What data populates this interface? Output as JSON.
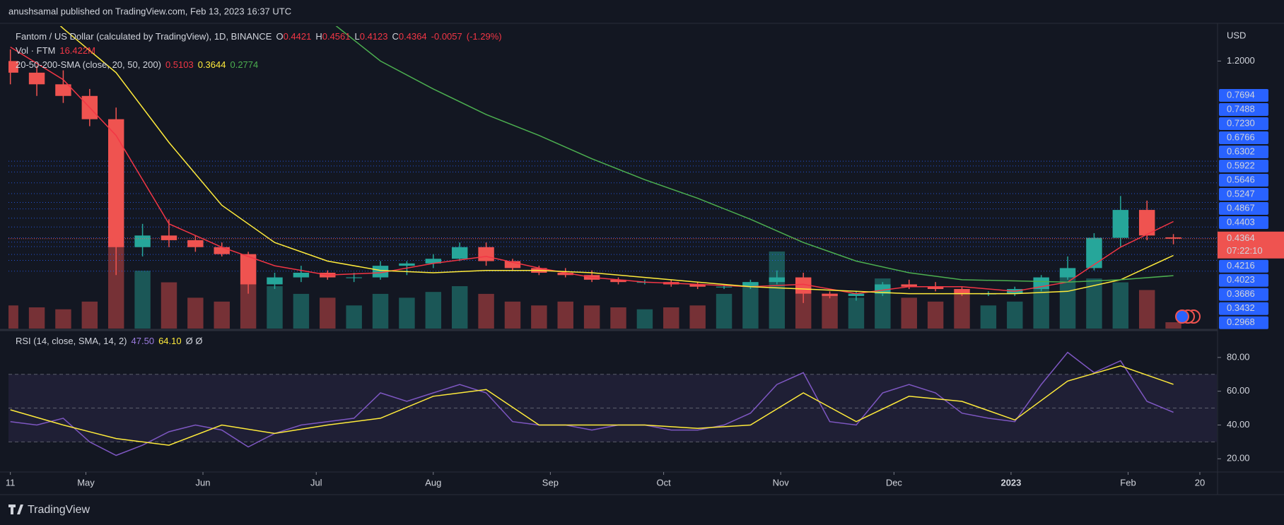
{
  "header": {
    "text": "anushsamal published on TradingView.com, Feb 13, 2023 16:37 UTC"
  },
  "footer": {
    "brand": "TradingView"
  },
  "chart_data": {
    "type": "candlestick",
    "title": "Fantom / US Dollar (calculated by TradingView), 1D, BINANCE",
    "ohlc_labels": [
      "O",
      "H",
      "L",
      "C"
    ],
    "change": -0.0057,
    "change_pct": {
      "value": -1.29,
      "label": "(-1.29%)"
    },
    "currency": "USD",
    "countdown": "07:22:10",
    "up_color": "#26a69a",
    "down_color": "#ef5350",
    "xlim": [
      -0.5,
      319.5
    ],
    "xticks": [
      {
        "value": 0,
        "label": "11"
      },
      {
        "value": 20,
        "label": "May"
      },
      {
        "value": 51,
        "label": "Jun"
      },
      {
        "value": 81,
        "label": "Jul"
      },
      {
        "value": 112,
        "label": "Aug"
      },
      {
        "value": 143,
        "label": "Sep"
      },
      {
        "value": 173,
        "label": "Oct"
      },
      {
        "value": 204,
        "label": "Nov"
      },
      {
        "value": 234,
        "label": "Dec"
      },
      {
        "value": 265,
        "label": "2023"
      },
      {
        "value": 296,
        "label": "Feb"
      },
      {
        "value": 315,
        "label": "20"
      }
    ],
    "ylim": [
      0.05,
      1.35
    ],
    "yticks": [
      {
        "value": 1.2,
        "label": "1.2000"
      }
    ],
    "price_levels": [
      0.7694,
      0.7488,
      {
        "value": 0.723,
        "label": "0.7230"
      },
      0.6766,
      0.6302,
      0.5922,
      0.5646,
      0.5247,
      0.4867,
      0.4403,
      0.4216,
      0.4023,
      0.3686,
      0.3432,
      0.2968
    ],
    "level_color": "#2962ff",
    "x": [
      0,
      7,
      14,
      21,
      28,
      35,
      42,
      49,
      56,
      63,
      70,
      77,
      84,
      91,
      98,
      105,
      112,
      119,
      126,
      133,
      140,
      147,
      154,
      161,
      168,
      175,
      182,
      189,
      196,
      203,
      210,
      217,
      224,
      231,
      238,
      245,
      252,
      259,
      266,
      273,
      280,
      287,
      294,
      301,
      308
    ],
    "open": [
      1.2,
      1.15,
      1.1,
      1.05,
      0.95,
      0.4,
      0.45,
      0.43,
      0.4,
      0.37,
      0.24,
      0.27,
      0.29,
      0.27,
      0.27,
      0.32,
      0.33,
      0.35,
      0.4,
      0.34,
      0.31,
      0.29,
      0.28,
      0.26,
      0.25,
      0.25,
      0.24,
      0.23,
      0.23,
      0.25,
      0.27,
      0.2,
      0.19,
      0.2,
      0.24,
      0.23,
      0.22,
      0.2,
      0.2,
      0.22,
      0.27,
      0.31,
      0.44,
      0.56,
      0.4421
    ],
    "high": [
      1.25,
      1.18,
      1.16,
      1.08,
      1.0,
      0.5,
      0.52,
      0.45,
      0.42,
      0.38,
      0.29,
      0.32,
      0.3,
      0.29,
      0.34,
      0.34,
      0.37,
      0.42,
      0.42,
      0.35,
      0.32,
      0.31,
      0.3,
      0.27,
      0.26,
      0.26,
      0.25,
      0.24,
      0.26,
      0.3,
      0.29,
      0.21,
      0.21,
      0.25,
      0.26,
      0.25,
      0.23,
      0.21,
      0.23,
      0.28,
      0.36,
      0.46,
      0.62,
      0.6,
      0.4561
    ],
    "low": [
      1.1,
      1.05,
      1.02,
      0.92,
      0.28,
      0.36,
      0.4,
      0.38,
      0.36,
      0.2,
      0.22,
      0.25,
      0.26,
      0.25,
      0.26,
      0.28,
      0.31,
      0.34,
      0.32,
      0.3,
      0.28,
      0.27,
      0.25,
      0.24,
      0.24,
      0.23,
      0.22,
      0.22,
      0.22,
      0.24,
      0.16,
      0.18,
      0.17,
      0.19,
      0.22,
      0.21,
      0.19,
      0.19,
      0.19,
      0.21,
      0.26,
      0.3,
      0.4,
      0.43,
      0.4123
    ],
    "close": [
      1.15,
      1.1,
      1.05,
      0.95,
      0.4,
      0.45,
      0.43,
      0.4,
      0.37,
      0.24,
      0.27,
      0.29,
      0.27,
      0.27,
      0.32,
      0.33,
      0.35,
      0.4,
      0.34,
      0.31,
      0.29,
      0.28,
      0.26,
      0.25,
      0.25,
      0.24,
      0.23,
      0.23,
      0.25,
      0.27,
      0.2,
      0.19,
      0.2,
      0.24,
      0.23,
      0.22,
      0.2,
      0.2,
      0.22,
      0.27,
      0.31,
      0.44,
      0.56,
      0.45,
      0.4364
    ],
    "volume": {
      "name": "Vol · FTM",
      "last_label": "16.422M",
      "values": [
        60,
        55,
        50,
        70,
        220,
        150,
        120,
        80,
        70,
        190,
        110,
        90,
        80,
        60,
        90,
        80,
        95,
        110,
        90,
        70,
        60,
        70,
        60,
        55,
        50,
        55,
        60,
        90,
        120,
        200,
        130,
        90,
        80,
        130,
        80,
        70,
        90,
        60,
        70,
        110,
        150,
        130,
        120,
        100,
        16.422
      ]
    },
    "sma": {
      "title": "20-50-200-SMA (close, 20, 50, 200)",
      "series": [
        {
          "color": "#f23645",
          "x": [
            0,
            14,
            28,
            42,
            56,
            70,
            84,
            98,
            112,
            126,
            140,
            154,
            168,
            182,
            196,
            210,
            224,
            238,
            252,
            266,
            280,
            294,
            308
          ],
          "values": [
            1.26,
            1.12,
            0.88,
            0.5,
            0.4,
            0.32,
            0.28,
            0.29,
            0.33,
            0.36,
            0.31,
            0.27,
            0.25,
            0.24,
            0.23,
            0.24,
            0.2,
            0.23,
            0.23,
            0.21,
            0.25,
            0.4,
            0.5103
          ]
        },
        {
          "color": "#ffeb3b",
          "x": [
            0,
            14,
            28,
            42,
            56,
            70,
            84,
            98,
            112,
            126,
            140,
            154,
            168,
            182,
            196,
            210,
            224,
            238,
            252,
            266,
            280,
            294,
            308
          ],
          "values": [
            1.55,
            1.34,
            1.15,
            0.85,
            0.58,
            0.42,
            0.34,
            0.3,
            0.29,
            0.3,
            0.3,
            0.29,
            0.27,
            0.25,
            0.23,
            0.22,
            0.21,
            0.2,
            0.2,
            0.2,
            0.21,
            0.26,
            0.3644
          ]
        },
        {
          "color": "#4caf50",
          "x": [
            0,
            14,
            28,
            42,
            56,
            70,
            84,
            98,
            112,
            126,
            140,
            154,
            168,
            182,
            196,
            210,
            224,
            238,
            252,
            266,
            280,
            294,
            308
          ],
          "values": [
            2.2,
            2.05,
            1.9,
            1.8,
            1.65,
            1.5,
            1.38,
            1.2,
            1.08,
            0.97,
            0.88,
            0.78,
            0.69,
            0.61,
            0.52,
            0.42,
            0.34,
            0.29,
            0.26,
            0.255,
            0.25,
            0.26,
            0.2774
          ]
        }
      ]
    },
    "rsi": {
      "title": "RSI (14, close, SMA, 14, 2)",
      "extra": "Ø Ø",
      "ylim": [
        13,
        95
      ],
      "yticks": [
        {
          "value": 80,
          "label": "80.00"
        },
        {
          "value": 60,
          "label": "60.00"
        },
        {
          "value": 40,
          "label": "40.00"
        },
        {
          "value": 20,
          "label": "20.00"
        }
      ],
      "levels": [
        70,
        50,
        30
      ],
      "series": [
        {
          "color": "#7e57c2",
          "last_label": "47.50",
          "x": [
            0,
            7,
            14,
            21,
            28,
            35,
            42,
            49,
            56,
            63,
            70,
            77,
            84,
            91,
            98,
            105,
            112,
            119,
            126,
            133,
            140,
            147,
            154,
            161,
            168,
            175,
            182,
            189,
            196,
            203,
            210,
            217,
            224,
            231,
            238,
            245,
            252,
            259,
            266,
            273,
            280,
            287,
            294,
            301,
            308
          ],
          "values": [
            42,
            40,
            44,
            30,
            22,
            28,
            36,
            40,
            37,
            27,
            35,
            40,
            42,
            44,
            59,
            54,
            59,
            64,
            59,
            42,
            40,
            40,
            37,
            40,
            40,
            37,
            37,
            40,
            47,
            64,
            71,
            42,
            40,
            59,
            64,
            59,
            47,
            44,
            42,
            64,
            83,
            71,
            78,
            54,
            47.5
          ]
        },
        {
          "color": "#ffeb3b",
          "last_label": "64.10",
          "x": [
            0,
            14,
            28,
            42,
            56,
            70,
            84,
            98,
            112,
            126,
            140,
            154,
            168,
            182,
            196,
            210,
            224,
            238,
            252,
            266,
            280,
            294,
            308
          ],
          "values": [
            49,
            40,
            32,
            28,
            40,
            35,
            40,
            44,
            57,
            61,
            40,
            40,
            40,
            38,
            40,
            59,
            42,
            57,
            54,
            43,
            66,
            75,
            64.1
          ]
        }
      ]
    }
  }
}
